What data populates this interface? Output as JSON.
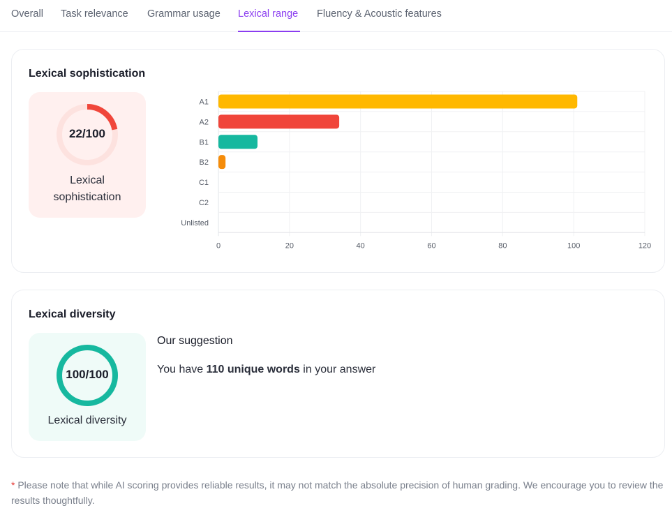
{
  "tabs": [
    {
      "label": "Overall"
    },
    {
      "label": "Task relevance"
    },
    {
      "label": "Grammar usage"
    },
    {
      "label": "Lexical range",
      "active": true
    },
    {
      "label": "Fluency & Acoustic features"
    }
  ],
  "sophistication": {
    "title": "Lexical sophistication",
    "score": "22/100",
    "score_value": 22,
    "label": "Lexical sophistication",
    "color": "#f0463a"
  },
  "chart_data": {
    "type": "bar",
    "orientation": "horizontal",
    "categories": [
      "A1",
      "A2",
      "B1",
      "B2",
      "C1",
      "C2",
      "Unlisted"
    ],
    "values": [
      101,
      34,
      11,
      2,
      0,
      0,
      0
    ],
    "colors": [
      "#ffb800",
      "#f0453a",
      "#16b89f",
      "#f58c0a",
      "#cccccc",
      "#cccccc",
      "#cccccc"
    ],
    "xlim": [
      0,
      120
    ],
    "xticks": [
      "0",
      "20",
      "40",
      "60",
      "80",
      "100",
      "120"
    ],
    "grid": true,
    "title": "",
    "xlabel": "",
    "ylabel": ""
  },
  "diversity": {
    "title": "Lexical diversity",
    "score": "100/100",
    "score_value": 100,
    "label": "Lexical diversity",
    "color": "#16b89f",
    "suggestion_title": "Our suggestion",
    "text_pre": "You have ",
    "text_bold": "110 unique words",
    "text_post": " in your answer"
  },
  "note": {
    "star": "*",
    "text": " Please note that while AI scoring provides reliable results, it may not match the absolute precision of human grading. We encourage you to review the results thoughtfully."
  }
}
